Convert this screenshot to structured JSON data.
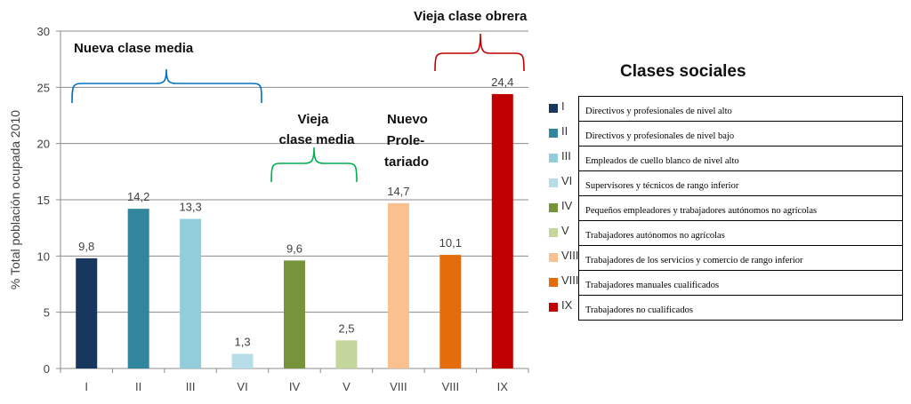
{
  "chart_data": {
    "type": "bar",
    "categories": [
      "I",
      "II",
      "III",
      "VI",
      "IV",
      "V",
      "VIII",
      "VIII",
      "IX"
    ],
    "values": [
      9.8,
      14.2,
      13.3,
      1.3,
      9.6,
      2.5,
      14.7,
      10.1,
      24.4
    ],
    "value_labels": [
      "9,8",
      "14,2",
      "13,3",
      "1,3",
      "9,6",
      "2,5",
      "14,7",
      "10,1",
      "24,4"
    ],
    "colors": [
      "#17375e",
      "#31859c",
      "#92cddc",
      "#b7dee8",
      "#77933c",
      "#c3d69b",
      "#fac090",
      "#e46c0a",
      "#c00000"
    ],
    "ylabel": "% Total población ocupada 2010",
    "ylim": [
      0,
      30
    ],
    "yticks": [
      0,
      5,
      10,
      15,
      20,
      25,
      30
    ],
    "grid": true,
    "legend_position": "right",
    "annotations": [
      {
        "text": "Nueva clase media",
        "color": "#0070c0"
      },
      {
        "text": "Vieja clase media",
        "color": "#00b050"
      },
      {
        "text": "Nuevo Prole- tariado",
        "color": ""
      },
      {
        "text": "Vieja clase obrera",
        "color": "#c00000"
      }
    ]
  },
  "legend": {
    "title": "Clases sociales",
    "items": [
      {
        "code": "I",
        "color": "#17375e",
        "label": "Directivos y profesionales de nivel alto"
      },
      {
        "code": "II",
        "color": "#31859c",
        "label": "Directivos y profesionales de nivel bajo"
      },
      {
        "code": "III",
        "color": "#92cddc",
        "label": "Empleados de cuello blanco de nivel alto"
      },
      {
        "code": "VI",
        "color": "#b7dee8",
        "label": "Supervisores y técnicos de rango inferior"
      },
      {
        "code": "IV",
        "color": "#77933c",
        "label": "Pequeños empleadores y trabajadores autónomos no agrícolas"
      },
      {
        "code": "V",
        "color": "#c3d69b",
        "label": "Trabajadores autónomos no agrícolas"
      },
      {
        "code": "VIII",
        "color": "#fac090",
        "label": "Trabajadores de los servicios y comercio de rango inferior"
      },
      {
        "code": "VIII",
        "color": "#e46c0a",
        "label": "Trabajadores manuales cualificados"
      },
      {
        "code": "IX",
        "color": "#c00000",
        "label": "Trabajadores no cualificados"
      }
    ]
  }
}
